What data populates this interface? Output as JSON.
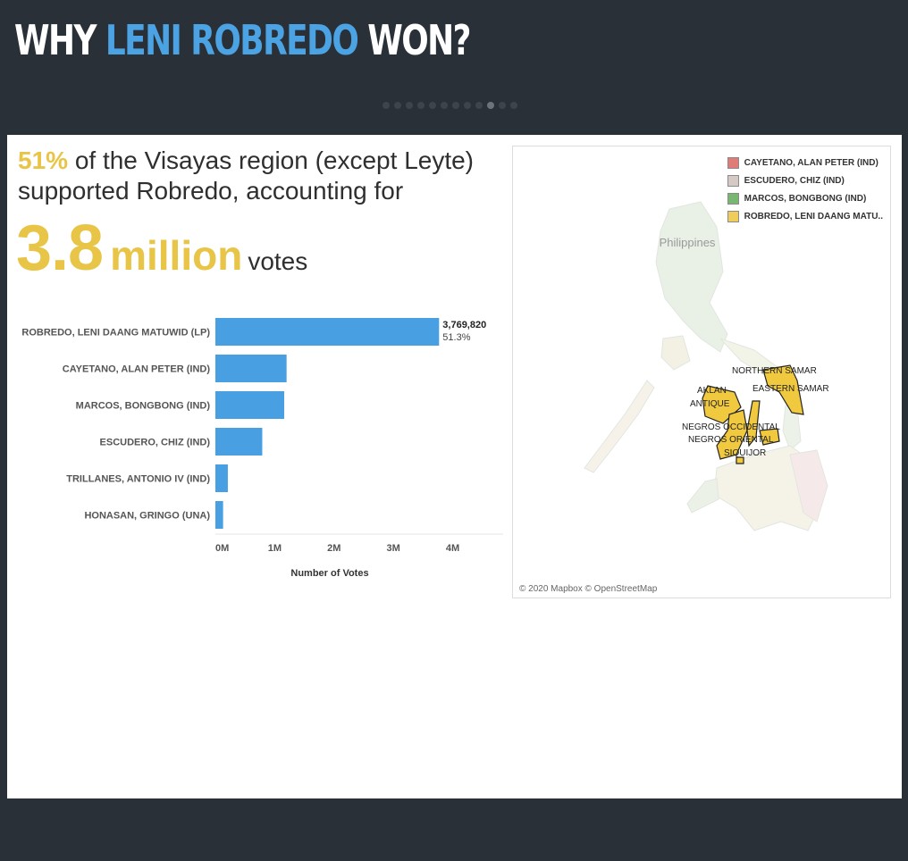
{
  "header": {
    "title_prefix": "WHY",
    "title_highlight": "LENI ROBREDO",
    "title_suffix": "WON?",
    "slide_count": 12,
    "active_slide_index": 9
  },
  "summary": {
    "percent": "51%",
    "line1_rest": "of the Visayas region (except Leyte)",
    "line2": "supported Robredo, accounting for",
    "big_number": "3.8",
    "big_unit": "million",
    "votes_word": "votes"
  },
  "chart_data": {
    "type": "bar",
    "orientation": "horizontal",
    "categories": [
      "ROBREDO, LENI DAANG MATUWID (LP)",
      "CAYETANO, ALAN PETER (IND)",
      "MARCOS, BONGBONG (IND)",
      "ESCUDERO, CHIZ (IND)",
      "TRILLANES, ANTONIO IV (IND)",
      "HONASAN, GRINGO (UNA)"
    ],
    "values": [
      3769820,
      1200000,
      1160000,
      790000,
      210000,
      130000
    ],
    "top_label": {
      "value_text": "3,769,820",
      "pct_text": "51.3%"
    },
    "xlabel": "Number of Votes",
    "ylabel": "",
    "xlim": [
      0,
      4850000
    ],
    "ticks": [
      0,
      1000000,
      2000000,
      3000000,
      4000000
    ],
    "tick_labels": [
      "0M",
      "1M",
      "2M",
      "3M",
      "4M"
    ],
    "bar_color": "#48a0e2"
  },
  "map": {
    "country_label": "Philippines",
    "legend": [
      {
        "label": "CAYETANO, ALAN PETER (IND)",
        "color": "#e07b77"
      },
      {
        "label": "ESCUDERO, CHIZ (IND)",
        "color": "#d5c8c5"
      },
      {
        "label": "MARCOS, BONGBONG (IND)",
        "color": "#77b76f"
      },
      {
        "label": "ROBREDO, LENI DAANG MATU..",
        "color": "#f0cc58"
      }
    ],
    "province_labels": [
      "NORTHERN SAMAR",
      "EASTERN SAMAR",
      "AKLAN",
      "ANTIQUE",
      "NEGROS OCCIDENTAL",
      "NEGROS ORIENTAL",
      "SIQUIJOR"
    ],
    "attribution": "© 2020 Mapbox © OpenStreetMap"
  }
}
